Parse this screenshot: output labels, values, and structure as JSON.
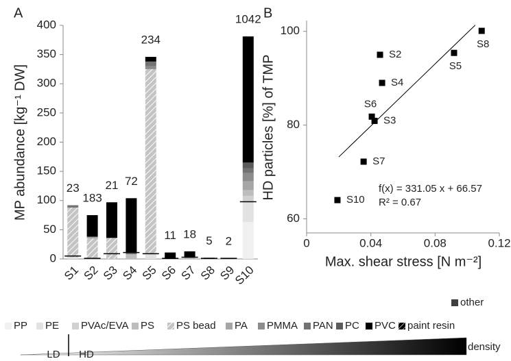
{
  "chart_data": [
    {
      "type": "stacked_bar",
      "panel": "A",
      "y_label": "MP abundance [kg⁻¹ DW]",
      "categories": [
        "S1",
        "S2",
        "S3",
        "S4",
        "S5",
        "S6",
        "S7",
        "S8",
        "S9",
        "S10"
      ],
      "ylim": [
        0,
        400
      ],
      "yticks": [
        0,
        50,
        100,
        150,
        200,
        250,
        300,
        350,
        400
      ],
      "particle_counts": [
        23,
        183,
        21,
        72,
        234,
        11,
        18,
        5,
        2,
        1042
      ],
      "ld_hd_boundary": [
        5,
        1,
        9,
        11,
        9,
        1,
        3,
        1,
        1,
        98
      ],
      "series": [
        {
          "name": "PP",
          "color": "#f0f0f0",
          "values": [
            0,
            0,
            0,
            0,
            0,
            0,
            0,
            0,
            0,
            63
          ]
        },
        {
          "name": "PE",
          "color": "#e2e2e2",
          "values": [
            3,
            0,
            0,
            0,
            8,
            0,
            0,
            0,
            0,
            35
          ]
        },
        {
          "name": "PVAc/EVA",
          "color": "#d0d0d0",
          "values": [
            0,
            0,
            0,
            0,
            0,
            0,
            0,
            0,
            0,
            10
          ]
        },
        {
          "name": "PS",
          "color": "#bdbdbd",
          "values": [
            0,
            0,
            0,
            8,
            0,
            0,
            3,
            0,
            0,
            10
          ]
        },
        {
          "name": "PS bead",
          "color": "#c4c4c4",
          "hatch": true,
          "values": [
            85,
            35,
            36,
            0,
            317,
            0,
            0,
            0,
            0,
            0
          ]
        },
        {
          "name": "PA",
          "color": "#a6a6a6",
          "values": [
            0,
            3,
            0,
            0,
            0,
            0,
            0,
            0,
            0,
            15
          ]
        },
        {
          "name": "PMMA",
          "color": "#8c8c8c",
          "values": [
            0,
            0,
            0,
            0,
            5,
            0,
            0,
            0,
            0,
            14
          ]
        },
        {
          "name": "PAN",
          "color": "#737373",
          "values": [
            4,
            0,
            0,
            3,
            8,
            0,
            0,
            0,
            0,
            8
          ]
        },
        {
          "name": "PC",
          "color": "#5c5c5c",
          "values": [
            0,
            0,
            0,
            0,
            0,
            0,
            0,
            0,
            0,
            10
          ]
        },
        {
          "name": "PVC",
          "color": "#000000",
          "values": [
            0,
            37,
            61,
            93,
            8,
            11,
            10,
            2,
            1,
            216
          ]
        },
        {
          "name": "paint resin",
          "color": "#000000",
          "hatch": true,
          "values": [
            0,
            0,
            0,
            0,
            0,
            0,
            0,
            0,
            0,
            0
          ]
        },
        {
          "name": "other",
          "color": "#404040",
          "values": [
            0,
            0,
            0,
            0,
            0,
            0,
            0,
            0,
            0,
            0
          ]
        }
      ],
      "density_scale": {
        "low": "LD",
        "high": "HD",
        "title": "density"
      }
    },
    {
      "type": "scatter",
      "panel": "B",
      "x_label": "Max. shear stress [N m⁻²]",
      "y_label": "HD particles [%] of TMP",
      "xlim": [
        0,
        0.12
      ],
      "xticks": [
        0,
        0.04,
        0.08,
        0.12
      ],
      "ylim": [
        57,
        102.3
      ],
      "yticks": [
        60,
        80,
        100
      ],
      "color": "#000000",
      "labels": [
        "S2",
        "S4",
        "S6",
        "S3",
        "S7",
        "S10",
        "S5",
        "S8"
      ],
      "x": [
        0.0457,
        0.047,
        0.0406,
        0.0423,
        0.0355,
        0.0192,
        0.0918,
        0.109
      ],
      "values": [
        95.0,
        89.0,
        81.8,
        80.9,
        72.2,
        64.0,
        95.4,
        100.1
      ],
      "fit": {
        "slope": 331.05,
        "intercept": 66.57,
        "x_range": [
          0.02,
          0.105
        ],
        "equation": "f(x) = 331.05 x + 66.57",
        "r2": "R² = 0.67"
      }
    }
  ]
}
